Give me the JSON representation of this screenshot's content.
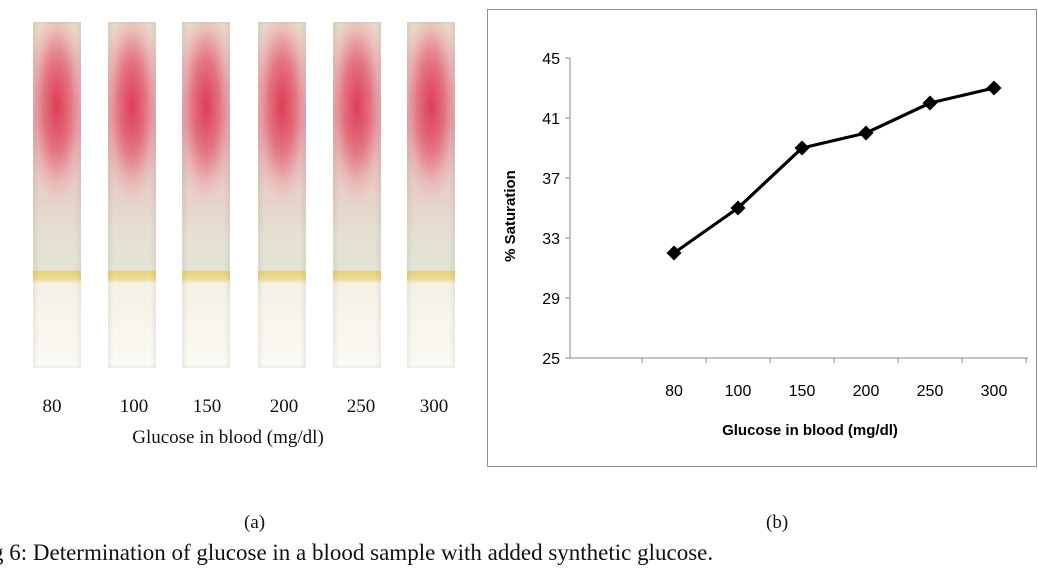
{
  "panel_a": {
    "strip_labels": [
      "80",
      "100",
      "150",
      "200",
      "250",
      "300"
    ],
    "xlabel": "Glucose in blood (mg/dl)",
    "letter": "(a)"
  },
  "panel_b": {
    "letter": "(b)"
  },
  "caption": "g 6: Determination of glucose in a blood sample  with added synthetic glucose.",
  "chart_data": {
    "type": "line",
    "categories": [
      "80",
      "100",
      "150",
      "200",
      "250",
      "300"
    ],
    "series": [
      {
        "values": [
          32,
          35,
          39,
          40,
          42,
          43
        ]
      }
    ],
    "xlabel": "Glucose  in blood (mg/dl)",
    "ylabel": "% Saturation",
    "ylim": [
      25,
      45
    ],
    "yticks": [
      25,
      29,
      33,
      37,
      41,
      45
    ],
    "grid": false,
    "legend": "none",
    "marker": "diamond",
    "line_color": "#000000"
  }
}
